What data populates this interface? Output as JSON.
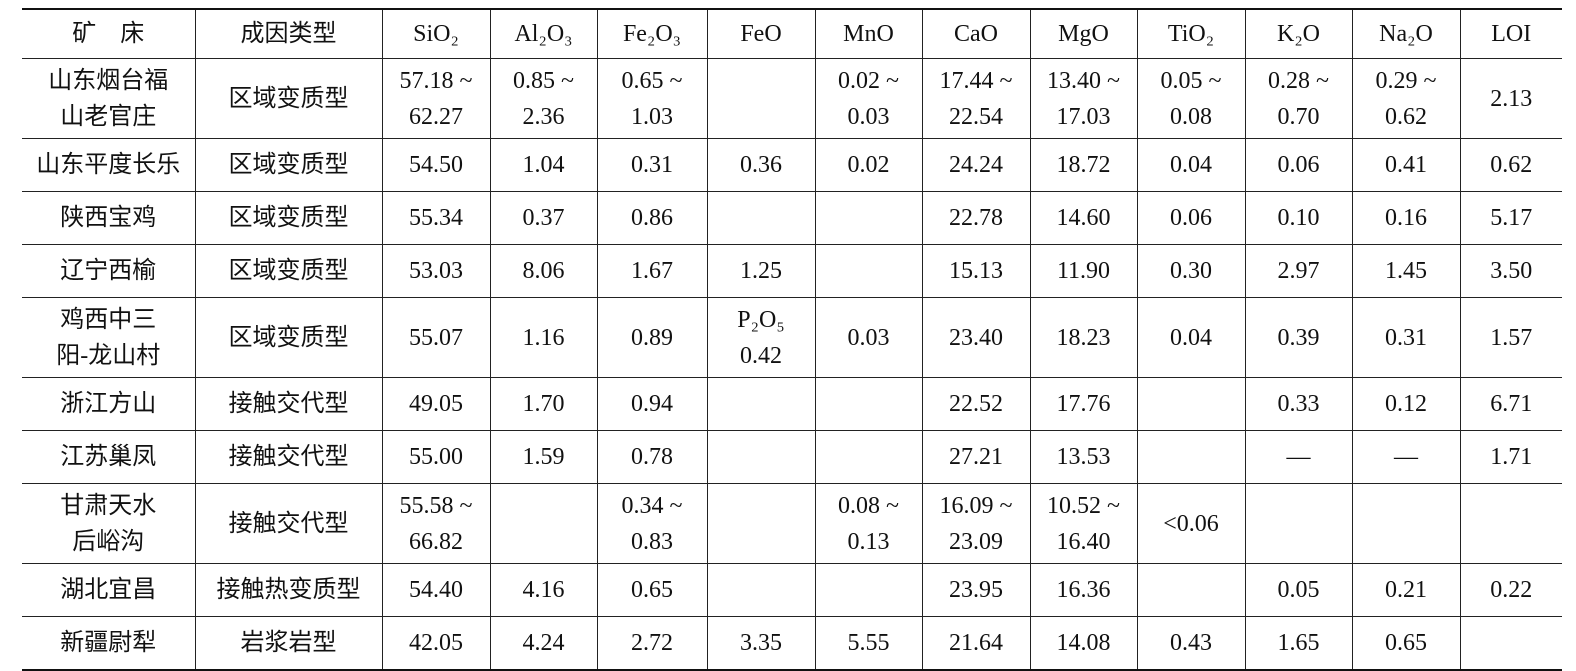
{
  "table": {
    "header": [
      "矿　床",
      "成因类型",
      "SiO₂",
      "Al₂O₃",
      "Fe₂O₃",
      "FeO",
      "MnO",
      "CaO",
      "MgO",
      "TiO₂",
      "K₂O",
      "Na₂O",
      "LOI"
    ],
    "rows": [
      [
        [
          "山东烟台福",
          "山老官庄"
        ],
        "区域变质型",
        [
          "57.18 ~",
          "62.27"
        ],
        [
          "0.85 ~",
          "2.36"
        ],
        [
          "0.65 ~",
          "1.03"
        ],
        null,
        [
          "0.02 ~",
          "0.03"
        ],
        [
          "17.44 ~",
          "22.54"
        ],
        [
          "13.40 ~",
          "17.03"
        ],
        [
          "0.05 ~",
          "0.08"
        ],
        [
          "0.28 ~",
          "0.70"
        ],
        [
          "0.29 ~",
          "0.62"
        ],
        "2.13"
      ],
      [
        "山东平度长乐",
        "区域变质型",
        "54.50",
        "1.04",
        "0.31",
        "0.36",
        "0.02",
        "24.24",
        "18.72",
        "0.04",
        "0.06",
        "0.41",
        "0.62"
      ],
      [
        "陕西宝鸡",
        "区域变质型",
        "55.34",
        "0.37",
        "0.86",
        null,
        null,
        "22.78",
        "14.60",
        "0.06",
        "0.10",
        "0.16",
        "5.17"
      ],
      [
        "辽宁西榆",
        "区域变质型",
        "53.03",
        "8.06",
        "1.67",
        "1.25",
        null,
        "15.13",
        "11.90",
        "0.30",
        "2.97",
        "1.45",
        "3.50"
      ],
      [
        [
          "鸡西中三",
          "阳-龙山村"
        ],
        "区域变质型",
        "55.07",
        "1.16",
        "0.89",
        [
          "P₂O₅",
          "0.42"
        ],
        "0.03",
        "23.40",
        "18.23",
        "0.04",
        "0.39",
        "0.31",
        "1.57"
      ],
      [
        "浙江方山",
        "接触交代型",
        "49.05",
        "1.70",
        "0.94",
        null,
        null,
        "22.52",
        "17.76",
        null,
        "0.33",
        "0.12",
        "6.71"
      ],
      [
        "江苏巢凤",
        "接触交代型",
        "55.00",
        "1.59",
        "0.78",
        null,
        null,
        "27.21",
        "13.53",
        null,
        "—",
        "—",
        "1.71"
      ],
      [
        [
          "甘肃天水",
          "后峪沟"
        ],
        "接触交代型",
        [
          "55.58 ~",
          "66.82"
        ],
        null,
        [
          "0.34 ~",
          "0.83"
        ],
        null,
        [
          "0.08 ~",
          "0.13"
        ],
        [
          "16.09 ~",
          "23.09"
        ],
        [
          "10.52 ~",
          "16.40"
        ],
        "<0.06",
        null,
        null,
        null
      ],
      [
        "湖北宜昌",
        "接触热变质型",
        "54.40",
        "4.16",
        "0.65",
        null,
        null,
        "23.95",
        "16.36",
        null,
        "0.05",
        "0.21",
        "0.22"
      ],
      [
        "新疆尉犁",
        "岩浆岩型",
        "42.05",
        "4.24",
        "2.72",
        "3.35",
        "5.55",
        "21.64",
        "14.08",
        "0.43",
        "1.65",
        "0.65",
        null
      ]
    ]
  }
}
